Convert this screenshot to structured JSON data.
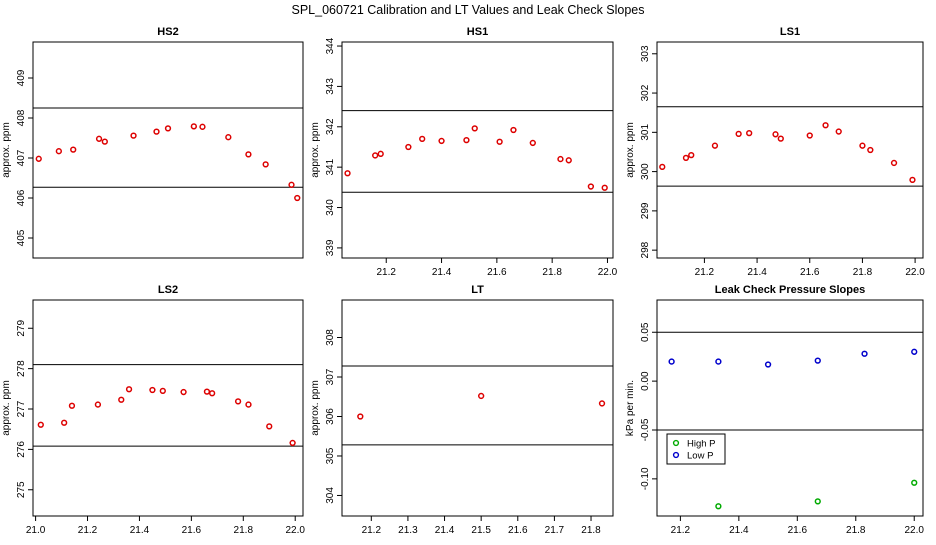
{
  "page_title": "SPL_060721  Calibration and LT Values and Leak Check Slopes",
  "chart_data": [
    {
      "type": "scatter",
      "title": "HS2",
      "ylabel": "approx. ppm",
      "xlim": [
        21.07,
        22.01
      ],
      "ylim": [
        404.5,
        409.9
      ],
      "xticks": [],
      "yticks": [
        405,
        406,
        407,
        408,
        409
      ],
      "hlines": [
        408.25,
        406.27
      ],
      "series": [
        {
          "marker": "circle",
          "color": "#dd0000",
          "x": [
            21.09,
            21.16,
            21.21,
            21.3,
            21.32,
            21.42,
            21.5,
            21.54,
            21.63,
            21.66,
            21.75,
            21.82,
            21.88,
            21.97,
            21.99
          ],
          "y": [
            406.98,
            407.17,
            407.21,
            407.48,
            407.41,
            407.56,
            407.66,
            407.74,
            407.79,
            407.78,
            407.52,
            407.09,
            406.84,
            406.33,
            406.0
          ]
        }
      ]
    },
    {
      "type": "scatter",
      "title": "HS1",
      "ylabel": "approx. ppm",
      "xlim": [
        21.04,
        22.02
      ],
      "ylim": [
        338.75,
        344.1
      ],
      "xticks": [
        21.2,
        21.4,
        21.6,
        21.8,
        22.0
      ],
      "yticks": [
        339,
        340,
        341,
        342,
        343,
        344
      ],
      "hlines": [
        342.4,
        340.38
      ],
      "series": [
        {
          "marker": "circle",
          "color": "#dd0000",
          "x": [
            21.06,
            21.16,
            21.18,
            21.28,
            21.33,
            21.4,
            21.49,
            21.52,
            21.61,
            21.66,
            21.73,
            21.83,
            21.86,
            21.94,
            21.99
          ],
          "y": [
            340.85,
            341.29,
            341.33,
            341.5,
            341.7,
            341.65,
            341.67,
            341.96,
            341.63,
            341.92,
            341.6,
            341.2,
            341.17,
            340.52,
            340.49
          ]
        }
      ]
    },
    {
      "type": "scatter",
      "title": "LS1",
      "ylabel": "approx. ppm",
      "xlim": [
        21.02,
        22.03
      ],
      "ylim": [
        297.8,
        303.3
      ],
      "xticks": [
        21.2,
        21.4,
        21.6,
        21.8,
        22.0
      ],
      "yticks": [
        298,
        299,
        300,
        301,
        302,
        303
      ],
      "hlines": [
        301.65,
        299.63
      ],
      "series": [
        {
          "marker": "circle",
          "color": "#dd0000",
          "x": [
            21.04,
            21.13,
            21.15,
            21.24,
            21.33,
            21.37,
            21.47,
            21.49,
            21.6,
            21.66,
            21.71,
            21.8,
            21.83,
            21.92,
            21.99
          ],
          "y": [
            300.12,
            300.35,
            300.42,
            300.66,
            300.96,
            300.98,
            300.95,
            300.84,
            300.92,
            301.18,
            301.02,
            300.66,
            300.55,
            300.22,
            299.79
          ]
        }
      ]
    },
    {
      "type": "scatter",
      "title": "LS2",
      "ylabel": "approx. ppm",
      "xlim": [
        20.99,
        22.03
      ],
      "ylim": [
        274.35,
        279.7
      ],
      "xticks": [
        21.0,
        21.2,
        21.4,
        21.6,
        21.8,
        22.0
      ],
      "yticks": [
        275,
        276,
        277,
        278,
        279
      ],
      "hlines": [
        278.1,
        276.08
      ],
      "series": [
        {
          "marker": "circle",
          "color": "#dd0000",
          "x": [
            21.02,
            21.11,
            21.14,
            21.24,
            21.33,
            21.36,
            21.45,
            21.49,
            21.57,
            21.66,
            21.68,
            21.78,
            21.82,
            21.9,
            21.99
          ],
          "y": [
            276.61,
            276.66,
            277.08,
            277.11,
            277.23,
            277.49,
            277.47,
            277.45,
            277.42,
            277.43,
            277.39,
            277.19,
            277.11,
            276.57,
            276.16
          ]
        }
      ]
    },
    {
      "type": "scatter",
      "title": "LT",
      "ylabel": "approx. ppm",
      "xlim": [
        21.12,
        21.86
      ],
      "ylim": [
        303.48,
        308.95
      ],
      "xticks": [
        21.2,
        21.3,
        21.4,
        21.5,
        21.6,
        21.7,
        21.8
      ],
      "yticks": [
        304,
        305,
        306,
        307,
        308
      ],
      "hlines": [
        307.28,
        305.28
      ],
      "series": [
        {
          "marker": "circle",
          "color": "#dd0000",
          "x": [
            21.17,
            21.5,
            21.83
          ],
          "y": [
            306.0,
            306.52,
            306.33
          ]
        }
      ]
    },
    {
      "type": "scatter",
      "title": "Leak Check Pressure Slopes",
      "ylabel": "kPa per min.",
      "xlim": [
        21.12,
        22.03
      ],
      "ylim": [
        -0.138,
        0.083
      ],
      "xticks": [
        21.2,
        21.4,
        21.6,
        21.8,
        22.0
      ],
      "yticks": [
        -0.1,
        -0.05,
        0.0,
        0.05
      ],
      "ytick_labels": [
        "-0.10",
        "-0.05",
        "0.00",
        "0.05"
      ],
      "hlines": [
        0.05,
        -0.05
      ],
      "legend": {
        "placement": "bottom-left",
        "entries": [
          "High P",
          "Low P"
        ]
      },
      "series": [
        {
          "name": "High P",
          "marker": "circle",
          "color": "#00aa00",
          "x": [
            21.33,
            21.67,
            22.0
          ],
          "y": [
            -0.128,
            -0.123,
            -0.104
          ]
        },
        {
          "name": "Low P",
          "marker": "circle",
          "color": "#0000cc",
          "x": [
            21.17,
            21.33,
            21.5,
            21.67,
            21.83,
            22.0
          ],
          "y": [
            0.02,
            0.02,
            0.017,
            0.021,
            0.028,
            0.03
          ]
        }
      ]
    }
  ]
}
